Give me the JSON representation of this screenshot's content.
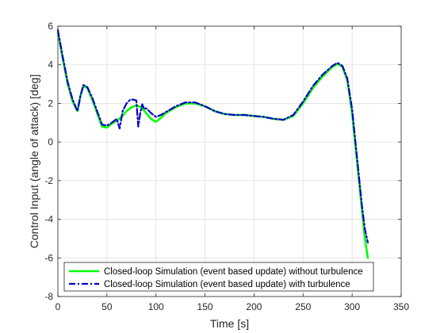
{
  "chart_data": {
    "type": "line",
    "xlabel": "Time [s]",
    "ylabel": "Control Input (angle of attack) [deg]",
    "xlim": [
      0,
      350
    ],
    "ylim": [
      -8,
      6
    ],
    "xticks": [
      0,
      50,
      100,
      150,
      200,
      250,
      300,
      350
    ],
    "yticks": [
      -8,
      -6,
      -4,
      -2,
      0,
      2,
      4,
      6
    ],
    "grid": true,
    "legend_position": "bottom-left",
    "series": [
      {
        "name": "Closed-loop Simulation (event based update) without turbulence",
        "color": "#00ff00",
        "style": "solid",
        "x": [
          0,
          5,
          10,
          15,
          20,
          23,
          26,
          30,
          35,
          40,
          45,
          50,
          55,
          60,
          65,
          70,
          75,
          80,
          85,
          90,
          95,
          100,
          105,
          110,
          120,
          130,
          140,
          150,
          160,
          170,
          180,
          190,
          200,
          210,
          220,
          230,
          240,
          250,
          260,
          270,
          280,
          285,
          290,
          295,
          300,
          305,
          310,
          313,
          316
        ],
        "y": [
          5.7,
          4.3,
          3.0,
          2.1,
          1.6,
          2.4,
          2.9,
          2.8,
          2.2,
          1.5,
          0.8,
          0.75,
          0.95,
          1.1,
          1.3,
          1.6,
          1.8,
          1.9,
          1.8,
          1.5,
          1.2,
          1.05,
          1.25,
          1.5,
          1.8,
          2.0,
          2.0,
          1.85,
          1.6,
          1.45,
          1.4,
          1.4,
          1.35,
          1.3,
          1.2,
          1.15,
          1.35,
          2.0,
          2.8,
          3.4,
          3.9,
          4.05,
          3.9,
          3.2,
          1.5,
          -1.0,
          -3.5,
          -5.0,
          -6.0
        ]
      },
      {
        "name": "Closed-loop Simulation (event based update) with turbulence",
        "color": "#0000c8",
        "style": "dashdot",
        "x": [
          0,
          5,
          10,
          15,
          20,
          23,
          26,
          30,
          35,
          40,
          45,
          50,
          55,
          60,
          63,
          66,
          70,
          74,
          77,
          80,
          82,
          84,
          86,
          88,
          90,
          95,
          100,
          105,
          110,
          120,
          130,
          140,
          150,
          160,
          170,
          180,
          190,
          200,
          210,
          220,
          230,
          240,
          250,
          260,
          270,
          280,
          285,
          290,
          295,
          300,
          305,
          310,
          313,
          316
        ],
        "y": [
          5.8,
          4.4,
          3.1,
          2.2,
          1.6,
          2.4,
          2.95,
          2.85,
          2.3,
          1.6,
          0.9,
          0.85,
          1.0,
          1.2,
          0.7,
          1.6,
          2.0,
          2.2,
          2.2,
          2.15,
          0.8,
          1.5,
          1.95,
          1.7,
          1.75,
          1.5,
          1.3,
          1.4,
          1.55,
          1.85,
          2.05,
          2.05,
          1.85,
          1.6,
          1.45,
          1.4,
          1.4,
          1.35,
          1.3,
          1.2,
          1.15,
          1.4,
          2.1,
          2.9,
          3.5,
          3.95,
          4.1,
          3.95,
          3.3,
          1.7,
          -0.8,
          -3.3,
          -4.5,
          -5.2
        ]
      }
    ]
  }
}
